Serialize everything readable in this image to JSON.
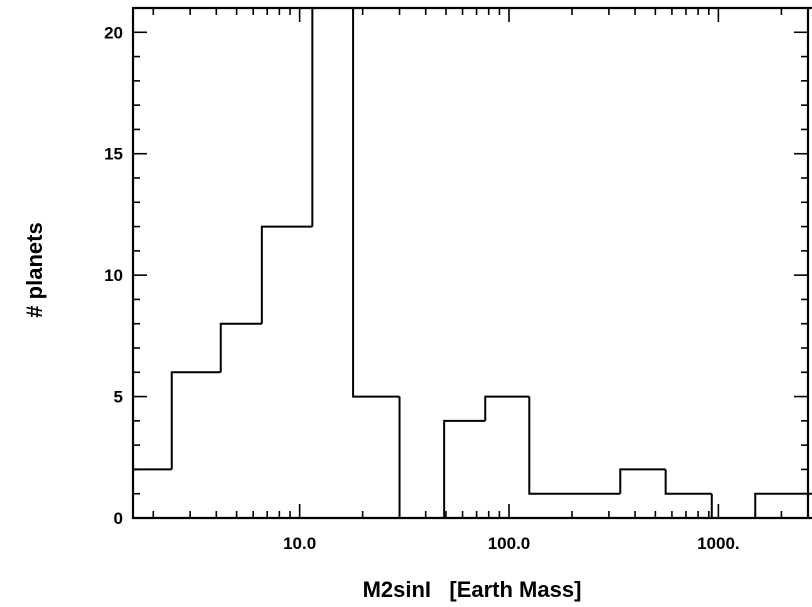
{
  "chart_data": {
    "type": "histogram-step",
    "xlabel": "M2sinI   [Earth Mass]",
    "ylabel": "# planets",
    "x_scale": "log",
    "xlim": [
      1.6,
      2800
    ],
    "ylim": [
      0,
      21
    ],
    "x_tick_labels": [
      {
        "value": 10,
        "label": "10.0"
      },
      {
        "value": 100,
        "label": "100.0"
      },
      {
        "value": 1000,
        "label": "1000."
      }
    ],
    "y_ticks": [
      0,
      5,
      10,
      15,
      20
    ],
    "bins": [
      {
        "x0": 1.6,
        "x1": 2.45,
        "count": 2
      },
      {
        "x0": 2.45,
        "x1": 4.2,
        "count": 6
      },
      {
        "x0": 4.2,
        "x1": 6.6,
        "count": 8
      },
      {
        "x0": 6.6,
        "x1": 11.5,
        "count": 12
      },
      {
        "x0": 11.5,
        "x1": 18.0,
        "count": 21
      },
      {
        "x0": 18.0,
        "x1": 30.0,
        "count": 5
      },
      {
        "x0": 30.0,
        "x1": 49.0,
        "count": 0
      },
      {
        "x0": 49.0,
        "x1": 77.0,
        "count": 4
      },
      {
        "x0": 77.0,
        "x1": 125.0,
        "count": 5
      },
      {
        "x0": 125.0,
        "x1": 340.0,
        "count": 1
      },
      {
        "x0": 340.0,
        "x1": 560.0,
        "count": 2
      },
      {
        "x0": 560.0,
        "x1": 930.0,
        "count": 1
      },
      {
        "x0": 930.0,
        "x1": 1500.0,
        "count": 0
      },
      {
        "x0": 1500.0,
        "x1": 2800.0,
        "count": 1
      }
    ]
  }
}
